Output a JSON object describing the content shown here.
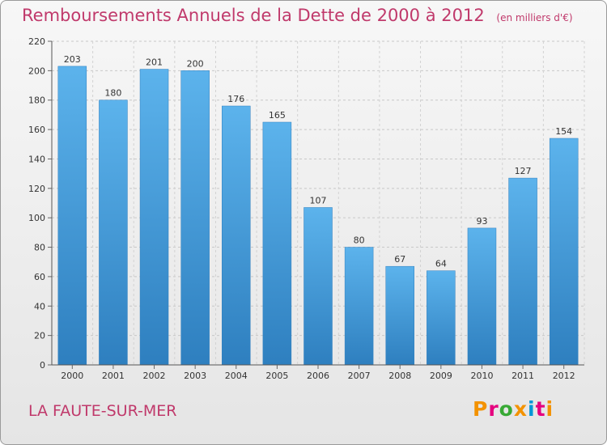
{
  "chart_data": {
    "type": "bar",
    "title": "Remboursements Annuels de la Dette de 2000 à 2012",
    "subtitle": "(en milliers d'€)",
    "categories": [
      "2000",
      "2001",
      "2002",
      "2003",
      "2004",
      "2005",
      "2006",
      "2007",
      "2008",
      "2009",
      "2010",
      "2011",
      "2012"
    ],
    "values": [
      203,
      180,
      201,
      200,
      176,
      165,
      107,
      80,
      67,
      64,
      93,
      127,
      154
    ],
    "ylim": [
      0,
      220
    ],
    "yticks": [
      0,
      20,
      40,
      60,
      80,
      100,
      120,
      140,
      160,
      180,
      200,
      220
    ],
    "xlabel": "",
    "ylabel": "",
    "grid": true,
    "bar_color": "#4aa3e3"
  },
  "footer": {
    "city": "LA FAUTE-SUR-MER",
    "logo": "Proxiti"
  },
  "colors": {
    "title": "#c0396b",
    "logo_letters": [
      "#f39200",
      "#e5007e",
      "#38a935",
      "#f39200",
      "#0096d6",
      "#e5007e",
      "#f39200"
    ]
  }
}
